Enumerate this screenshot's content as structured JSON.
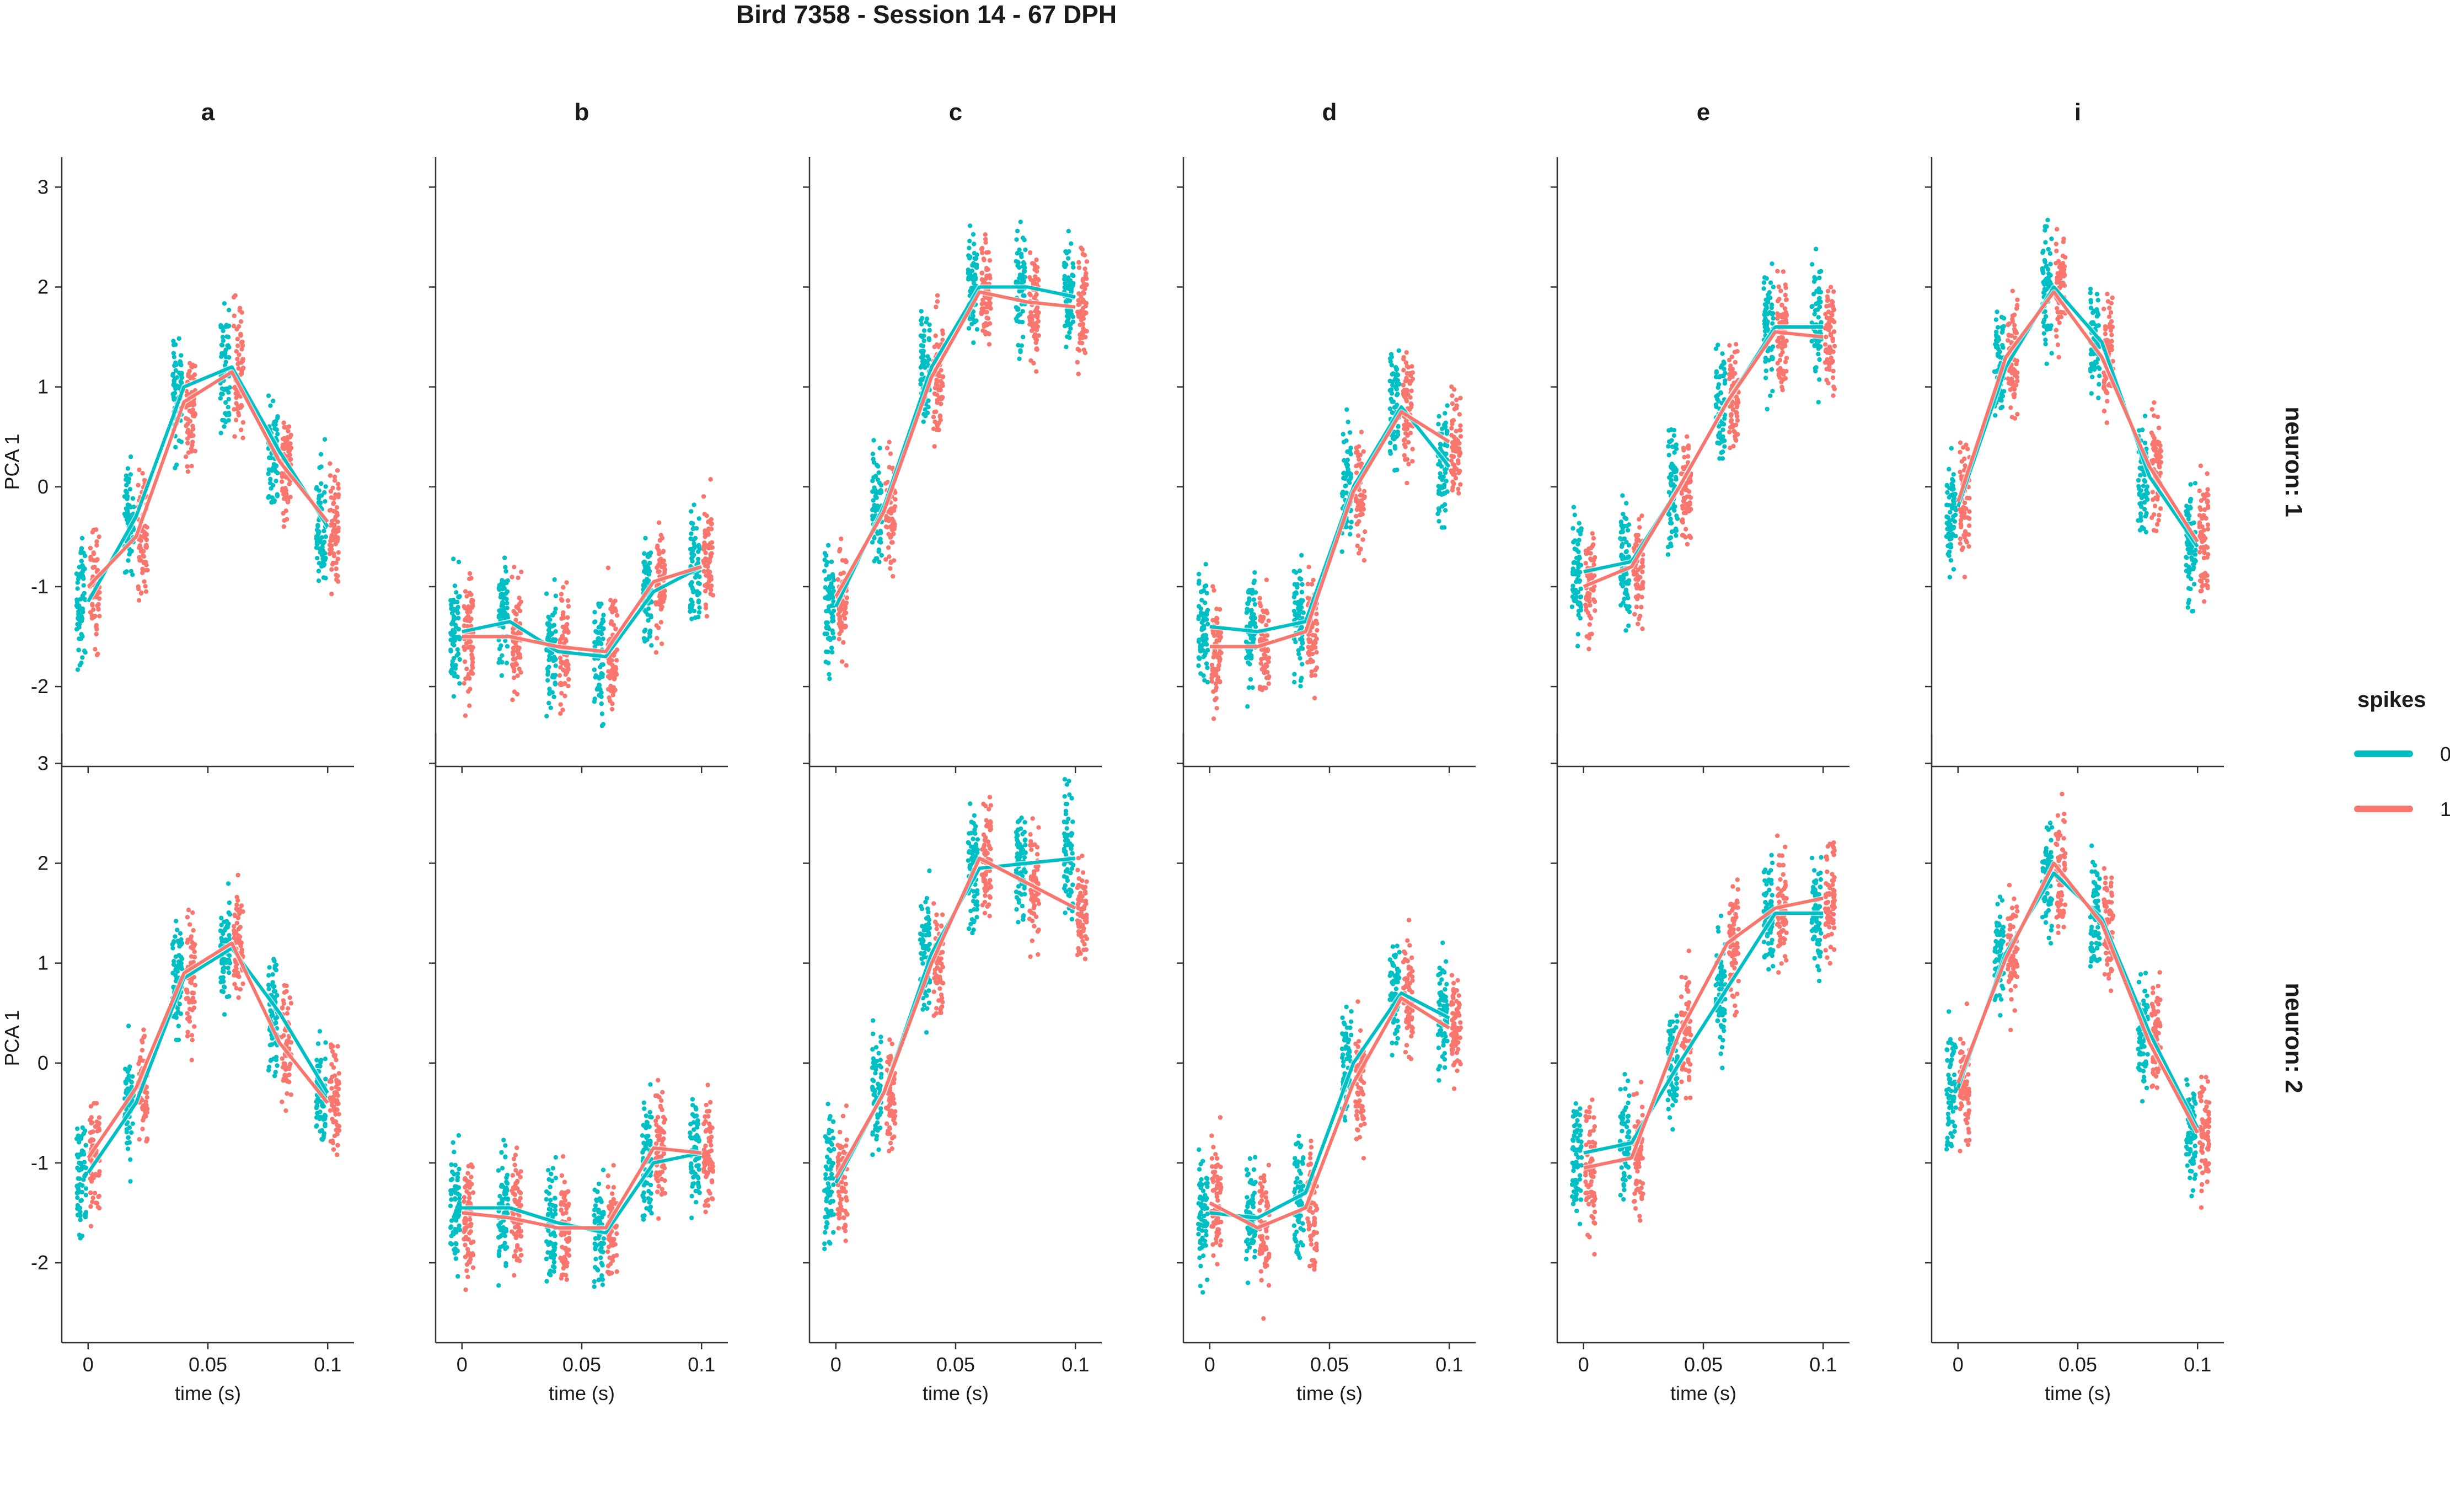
{
  "chart_data": {
    "type": "scatter",
    "title": "Bird 7358 - Session 14 - 67 DPH",
    "xlabel": "time (s)",
    "ylabel": "PCA 1",
    "xlim": [
      -0.011,
      0.111
    ],
    "ylim": [
      -2.8,
      3.3
    ],
    "x_ticks": [
      0,
      0.05,
      0.1
    ],
    "x_tick_labels": [
      "0",
      "0.05",
      "0.1"
    ],
    "y_ticks": [
      -2,
      -1,
      0,
      1,
      2,
      3
    ],
    "y_tick_labels": [
      "-2",
      "-1",
      "0",
      "1",
      "2",
      "3"
    ],
    "columns": [
      "a",
      "b",
      "c",
      "d",
      "e",
      "i"
    ],
    "rows": [
      "neuron: 1",
      "neuron: 2"
    ],
    "x": [
      0,
      0.02,
      0.04,
      0.06,
      0.08,
      0.1
    ],
    "legend": {
      "title": "spikes",
      "position": "right",
      "entries": [
        {
          "label": "0",
          "color": "#00BFC4"
        },
        {
          "label": "1",
          "color": "#F8766D"
        }
      ]
    },
    "panels": [
      {
        "row": "neuron: 1",
        "column": "a",
        "series": [
          {
            "name": "0",
            "values": [
              -1.15,
              -0.3,
              1.0,
              1.2,
              0.35,
              -0.4
            ]
          },
          {
            "name": "1",
            "values": [
              -1.0,
              -0.5,
              0.85,
              1.15,
              0.25,
              -0.35
            ]
          }
        ]
      },
      {
        "row": "neuron: 1",
        "column": "b",
        "series": [
          {
            "name": "0",
            "values": [
              -1.45,
              -1.35,
              -1.65,
              -1.7,
              -1.05,
              -0.8
            ]
          },
          {
            "name": "1",
            "values": [
              -1.5,
              -1.5,
              -1.6,
              -1.65,
              -0.95,
              -0.8
            ]
          }
        ]
      },
      {
        "row": "neuron: 1",
        "column": "c",
        "series": [
          {
            "name": "0",
            "values": [
              -1.2,
              -0.2,
              1.2,
              2.0,
              2.0,
              1.9
            ]
          },
          {
            "name": "1",
            "values": [
              -1.1,
              -0.25,
              1.1,
              1.95,
              1.85,
              1.8
            ]
          }
        ]
      },
      {
        "row": "neuron: 1",
        "column": "d",
        "series": [
          {
            "name": "0",
            "values": [
              -1.4,
              -1.45,
              -1.35,
              0.0,
              0.8,
              0.2
            ]
          },
          {
            "name": "1",
            "values": [
              -1.6,
              -1.6,
              -1.45,
              -0.05,
              0.75,
              0.45
            ]
          }
        ]
      },
      {
        "row": "neuron: 1",
        "column": "e",
        "series": [
          {
            "name": "0",
            "values": [
              -0.85,
              -0.75,
              0.0,
              0.85,
              1.6,
              1.6
            ]
          },
          {
            "name": "1",
            "values": [
              -1.0,
              -0.8,
              0.0,
              0.85,
              1.55,
              1.5
            ]
          }
        ]
      },
      {
        "row": "neuron: 1",
        "column": "i",
        "series": [
          {
            "name": "0",
            "values": [
              -0.2,
              1.2,
              2.0,
              1.45,
              0.1,
              -0.6
            ]
          },
          {
            "name": "1",
            "values": [
              -0.15,
              1.3,
              1.95,
              1.3,
              0.2,
              -0.55
            ]
          }
        ]
      },
      {
        "row": "neuron: 2",
        "column": "a",
        "series": [
          {
            "name": "0",
            "values": [
              -1.1,
              -0.4,
              0.85,
              1.15,
              0.5,
              -0.3
            ]
          },
          {
            "name": "1",
            "values": [
              -0.95,
              -0.25,
              0.9,
              1.2,
              0.2,
              -0.4
            ]
          }
        ]
      },
      {
        "row": "neuron: 2",
        "column": "b",
        "series": [
          {
            "name": "0",
            "values": [
              -1.45,
              -1.45,
              -1.6,
              -1.7,
              -1.0,
              -0.9
            ]
          },
          {
            "name": "1",
            "values": [
              -1.5,
              -1.55,
              -1.65,
              -1.65,
              -0.85,
              -0.9
            ]
          }
        ]
      },
      {
        "row": "neuron: 2",
        "column": "c",
        "series": [
          {
            "name": "0",
            "values": [
              -1.2,
              -0.3,
              1.1,
              1.95,
              2.0,
              2.05
            ]
          },
          {
            "name": "1",
            "values": [
              -1.15,
              -0.3,
              1.0,
              2.05,
              1.8,
              1.55
            ]
          }
        ]
      },
      {
        "row": "neuron: 2",
        "column": "d",
        "series": [
          {
            "name": "0",
            "values": [
              -1.5,
              -1.55,
              -1.3,
              0.0,
              0.7,
              0.45
            ]
          },
          {
            "name": "1",
            "values": [
              -1.4,
              -1.65,
              -1.45,
              -0.2,
              0.65,
              0.35
            ]
          }
        ]
      },
      {
        "row": "neuron: 2",
        "column": "e",
        "series": [
          {
            "name": "0",
            "values": [
              -0.9,
              -0.8,
              0.0,
              0.75,
              1.5,
              1.5
            ]
          },
          {
            "name": "1",
            "values": [
              -1.05,
              -0.95,
              0.3,
              1.2,
              1.55,
              1.65
            ]
          }
        ]
      },
      {
        "row": "neuron: 2",
        "column": "i",
        "series": [
          {
            "name": "0",
            "values": [
              -0.25,
              1.1,
              1.9,
              1.45,
              0.3,
              -0.65
            ]
          },
          {
            "name": "1",
            "values": [
              -0.2,
              1.05,
              2.0,
              1.4,
              0.2,
              -0.7
            ]
          }
        ]
      }
    ],
    "point_scatter": {
      "description_free": true,
      "points_per_group": 70,
      "x_jitter": 0.004,
      "y_spread": 0.55
    },
    "grid": false
  }
}
